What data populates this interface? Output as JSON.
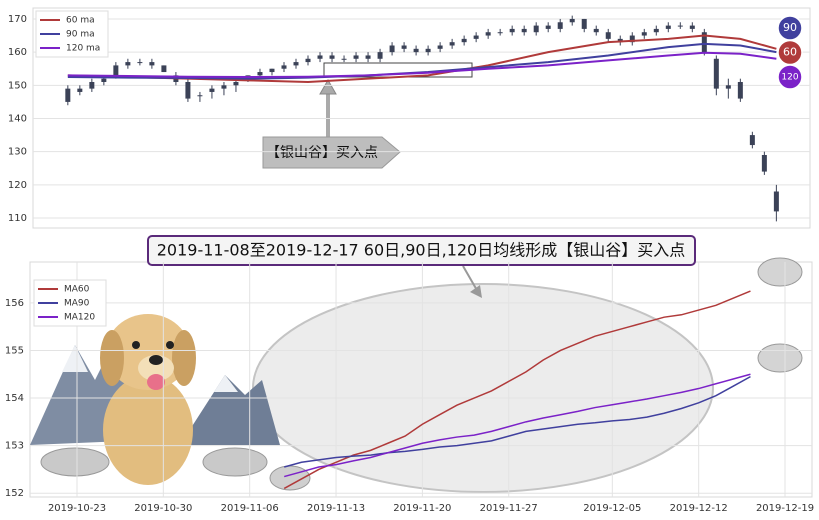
{
  "chart_data": [
    {
      "type": "candlestick",
      "xlim": [
        -2.9,
        61.8
      ],
      "ylim": [
        107,
        173.3
      ],
      "yticks": [
        110,
        120,
        130,
        140,
        150,
        160,
        170
      ],
      "grid": true,
      "legend": "upper left",
      "color": "#3b4257",
      "candles": {
        "open": [
          145,
          148,
          149,
          151,
          153,
          156,
          157,
          157,
          156,
          153,
          151,
          147,
          148,
          149,
          150,
          152,
          153,
          154,
          155,
          156,
          157,
          158,
          159,
          158,
          158,
          159,
          158,
          160,
          162,
          161,
          160,
          161,
          162,
          163,
          164,
          165,
          166,
          166,
          167,
          166,
          168,
          167,
          169,
          170,
          167,
          166,
          164,
          163,
          165,
          166,
          167,
          168,
          168,
          166,
          158,
          149,
          151,
          135,
          129,
          112
        ],
        "high": [
          150,
          150,
          152,
          153,
          157,
          158,
          158,
          158,
          156,
          154,
          152,
          148,
          150,
          151,
          152,
          153,
          155,
          155,
          157,
          158,
          159,
          160,
          160,
          159,
          160,
          160,
          161,
          163,
          163,
          162,
          162,
          163,
          164,
          165,
          166,
          167,
          167,
          168,
          168,
          169,
          169,
          170,
          171,
          170,
          168,
          167,
          165,
          166,
          167,
          168,
          169,
          169,
          169,
          167,
          159,
          152,
          152,
          136,
          130,
          120
        ],
        "low": [
          144,
          147,
          148,
          150,
          152,
          155,
          156,
          155,
          154,
          150,
          145,
          145,
          146,
          147,
          148,
          151,
          152,
          153,
          154,
          155,
          156,
          157,
          157,
          157,
          157,
          157,
          157,
          159,
          160,
          159,
          159,
          160,
          161,
          162,
          163,
          164,
          165,
          165,
          165,
          165,
          166,
          166,
          168,
          166,
          165,
          163,
          162,
          162,
          164,
          165,
          166,
          167,
          166,
          159,
          147,
          146,
          145,
          131,
          123,
          109
        ],
        "close": [
          149,
          149,
          151,
          152,
          156,
          157,
          157,
          156,
          154,
          151,
          146,
          147,
          149,
          150,
          151,
          153,
          154,
          155,
          156,
          157,
          158,
          159,
          158,
          158,
          159,
          158,
          160,
          162,
          161,
          160,
          161,
          162,
          163,
          164,
          165,
          166,
          166,
          167,
          166,
          168,
          167,
          169,
          170,
          167,
          166,
          164,
          163,
          165,
          166,
          167,
          168,
          168,
          167,
          160,
          149,
          150,
          146,
          132,
          124,
          118
        ]
      },
      "series": [
        {
          "name": "60 ma",
          "color": "#b03a3a",
          "x": [
            0,
            5,
            10,
            15,
            20,
            25,
            30,
            35,
            40,
            45,
            50,
            53,
            56,
            59
          ],
          "values": [
            153,
            152.5,
            152,
            151.5,
            151,
            152,
            153,
            156,
            160,
            163,
            164,
            165,
            164,
            161
          ]
        },
        {
          "name": "90 ma",
          "color": "#40409e",
          "x": [
            0,
            5,
            10,
            15,
            20,
            25,
            30,
            35,
            40,
            45,
            50,
            53,
            56,
            59
          ],
          "values": [
            152.5,
            152.3,
            152.2,
            152,
            152.3,
            153,
            154,
            155.5,
            157,
            159,
            161.5,
            162.5,
            162,
            160
          ]
        },
        {
          "name": "120 ma",
          "color": "#7b22c8",
          "x": [
            0,
            5,
            10,
            15,
            20,
            25,
            30,
            35,
            40,
            45,
            50,
            53,
            56,
            59
          ],
          "values": [
            153,
            152.8,
            152.6,
            152.5,
            152.6,
            153,
            153.8,
            155,
            156,
            157.5,
            159,
            159.8,
            159.5,
            158
          ]
        }
      ],
      "annotation": "【银山谷】买入点",
      "badges": [
        {
          "text": "90",
          "color": "#40409e"
        },
        {
          "text": "60",
          "color": "#b03a3a"
        },
        {
          "text": "120",
          "color": "#7b22c8"
        }
      ]
    },
    {
      "type": "line",
      "annotation": "2019-11-08至2019-12-17 60日,90日,120日均线形成【银山谷】买入点",
      "categories": [
        "2019-10-23",
        null,
        null,
        null,
        null,
        "2019-10-30",
        null,
        null,
        null,
        null,
        "2019-11-06",
        null,
        null,
        null,
        null,
        "2019-11-13",
        null,
        null,
        null,
        null,
        "2019-11-20",
        null,
        null,
        null,
        null,
        "2019-11-27",
        null,
        null,
        null,
        null,
        null,
        "2019-12-05",
        null,
        null,
        null,
        null,
        "2019-12-12",
        null,
        null,
        null,
        null,
        "2019-12-19"
      ],
      "ylim": [
        151.92,
        156.86
      ],
      "yticks": [
        152,
        153,
        154,
        155,
        156
      ],
      "grid": true,
      "legend": "upper left",
      "series": [
        {
          "name": "MA60",
          "color": "#b03a3a",
          "values": [
            null,
            null,
            null,
            null,
            null,
            null,
            null,
            null,
            null,
            null,
            null,
            null,
            152.1,
            152.3,
            152.5,
            152.65,
            152.8,
            152.9,
            153.05,
            153.2,
            153.45,
            153.65,
            153.85,
            154.0,
            154.15,
            154.35,
            154.55,
            154.8,
            155.0,
            155.15,
            155.3,
            155.4,
            155.5,
            155.6,
            155.7,
            155.75,
            155.85,
            155.95,
            156.1,
            156.25,
            null,
            null
          ]
        },
        {
          "name": "MA90",
          "color": "#40409e",
          "values": [
            null,
            null,
            null,
            null,
            null,
            null,
            null,
            null,
            null,
            null,
            null,
            null,
            152.55,
            152.65,
            152.7,
            152.75,
            152.78,
            152.8,
            152.85,
            152.88,
            152.92,
            152.97,
            153.0,
            153.05,
            153.1,
            153.2,
            153.3,
            153.35,
            153.4,
            153.45,
            153.48,
            153.52,
            153.55,
            153.6,
            153.68,
            153.78,
            153.9,
            154.05,
            154.25,
            154.45,
            null,
            null
          ]
        },
        {
          "name": "MA120",
          "color": "#7b22c8",
          "values": [
            null,
            null,
            null,
            null,
            null,
            null,
            null,
            null,
            null,
            null,
            null,
            null,
            152.35,
            152.45,
            152.55,
            152.6,
            152.68,
            152.75,
            152.85,
            152.95,
            153.05,
            153.12,
            153.18,
            153.22,
            153.3,
            153.4,
            153.5,
            153.58,
            153.65,
            153.72,
            153.8,
            153.86,
            153.92,
            153.98,
            154.05,
            154.12,
            154.2,
            154.3,
            154.4,
            154.5,
            null,
            null
          ]
        }
      ]
    }
  ]
}
